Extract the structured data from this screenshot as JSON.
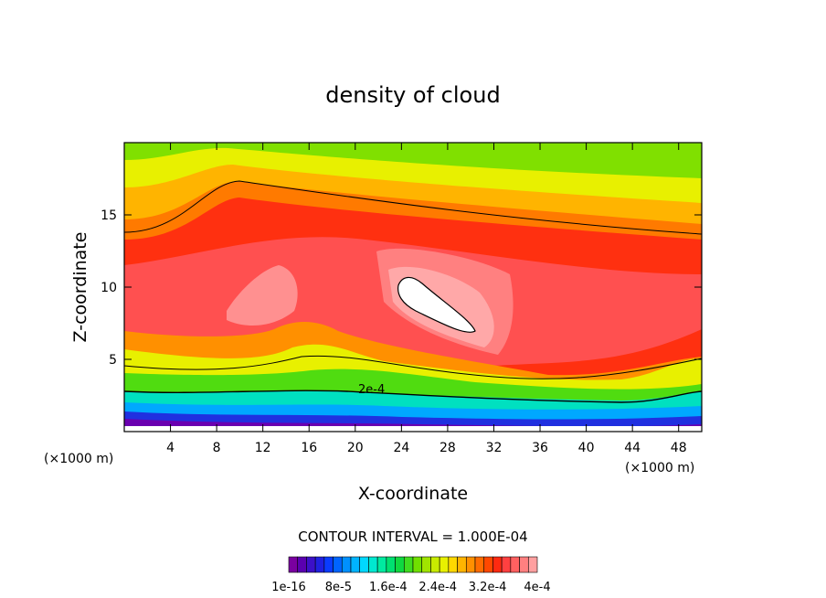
{
  "chart_data": {
    "type": "heatmap",
    "title": "density of cloud",
    "xlabel": "X-coordinate",
    "ylabel": "Z-coordinate",
    "x_unit_left": "(×1000 m)",
    "x_unit_right": "(×1000 m)",
    "xlim": [
      0,
      50
    ],
    "ylim": [
      0,
      20
    ],
    "x_ticks": [
      4,
      8,
      12,
      16,
      20,
      24,
      28,
      32,
      36,
      40,
      44,
      48
    ],
    "y_ticks": [
      5,
      10,
      15
    ],
    "contour_label": "2e-4",
    "contour_interval_text": "CONTOUR INTERVAL = 1.000E-04",
    "colorbar": {
      "labels": [
        "1e-16",
        "8e-5",
        "1.6e-4",
        "2.4e-4",
        "3.2e-4",
        "4e-4"
      ],
      "colors": [
        "#7a00a0",
        "#5a00b0",
        "#3c10c8",
        "#2020e0",
        "#0a3cff",
        "#0064ff",
        "#0090ff",
        "#00b4ff",
        "#00d8ff",
        "#00e8d0",
        "#00eaa0",
        "#00e070",
        "#10d840",
        "#40dc20",
        "#70e000",
        "#a0e400",
        "#c8ec00",
        "#e8f000",
        "#ffd800",
        "#ffb400",
        "#ff9000",
        "#ff6c00",
        "#ff4800",
        "#ff2a10",
        "#ff4040",
        "#ff6060",
        "#ff8080",
        "#ffa0a0"
      ]
    }
  }
}
